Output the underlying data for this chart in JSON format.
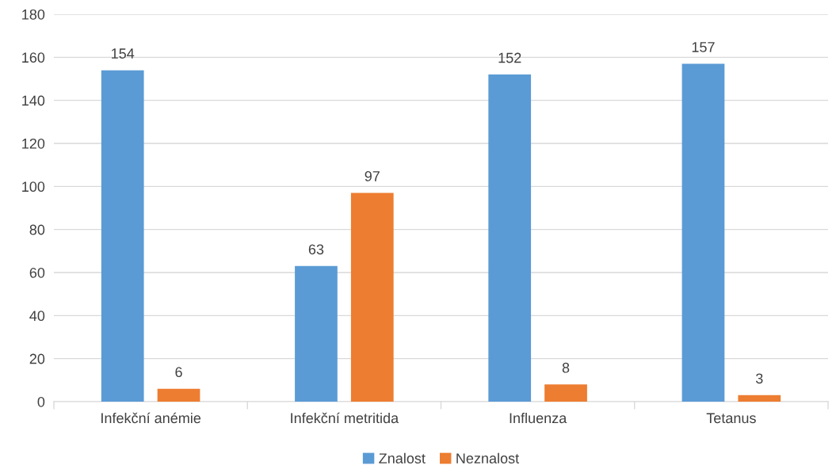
{
  "chart_data": {
    "type": "bar",
    "categories": [
      "Infekční anémie",
      "Infekční metritida",
      "Influenza",
      "Tetanus"
    ],
    "series": [
      {
        "name": "Znalost",
        "color": "#5b9bd5",
        "values": [
          154,
          63,
          152,
          157
        ]
      },
      {
        "name": "Neznalost",
        "color": "#ed7d31",
        "values": [
          6,
          97,
          8,
          3
        ]
      }
    ],
    "ylim": [
      0,
      180
    ],
    "yticks": [
      0,
      20,
      40,
      60,
      80,
      100,
      120,
      140,
      160,
      180
    ],
    "grid": "y",
    "legend": "bottom",
    "data_labels": true
  }
}
